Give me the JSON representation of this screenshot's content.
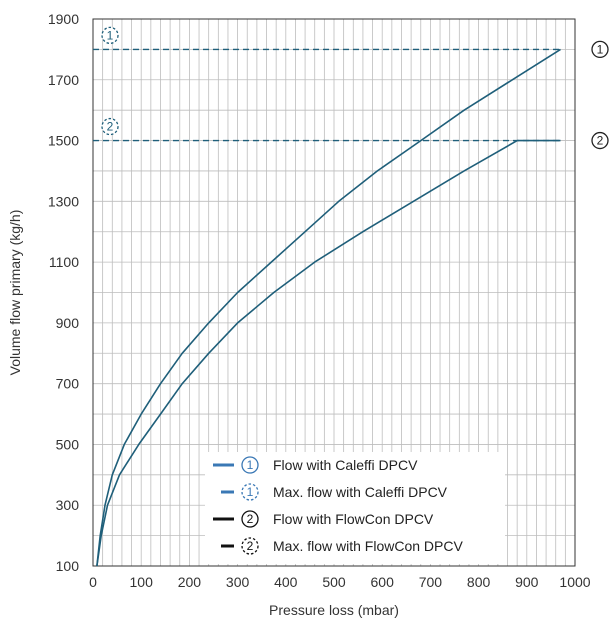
{
  "chart_data": {
    "type": "line",
    "title": "",
    "xlabel": "Pressure loss (mbar)",
    "ylabel": "Volume flow primary (kg/h)",
    "xlim": [
      0,
      1000
    ],
    "ylim": [
      100,
      1900
    ],
    "x_ticks": [
      0,
      100,
      200,
      300,
      400,
      500,
      600,
      700,
      800,
      900,
      1000
    ],
    "y_ticks": [
      100,
      300,
      500,
      700,
      900,
      1100,
      1300,
      1500,
      1700,
      1900
    ],
    "grid": true,
    "legend_position": "bottom-center",
    "series": [
      {
        "name": "Flow with Caleffi DPCV",
        "marker": "1",
        "style": "solid",
        "color": "#1f5f7a",
        "points": [
          [
            8,
            100
          ],
          [
            15,
            200
          ],
          [
            25,
            300
          ],
          [
            40,
            400
          ],
          [
            65,
            500
          ],
          [
            100,
            600
          ],
          [
            140,
            700
          ],
          [
            185,
            800
          ],
          [
            240,
            900
          ],
          [
            300,
            1000
          ],
          [
            370,
            1100
          ],
          [
            440,
            1200
          ],
          [
            510,
            1300
          ],
          [
            590,
            1400
          ],
          [
            680,
            1500
          ],
          [
            770,
            1600
          ],
          [
            870,
            1700
          ],
          [
            970,
            1800
          ]
        ]
      },
      {
        "name": "Max. flow with Caleffi DPCV",
        "marker": "1",
        "style": "dashed",
        "color": "#1f5f7a",
        "value": 1800
      },
      {
        "name": "Flow with FlowCon DPCV",
        "marker": "2",
        "style": "solid",
        "color": "#1f5f7a",
        "points": [
          [
            8,
            100
          ],
          [
            17,
            200
          ],
          [
            30,
            300
          ],
          [
            55,
            400
          ],
          [
            95,
            500
          ],
          [
            140,
            600
          ],
          [
            185,
            700
          ],
          [
            240,
            800
          ],
          [
            300,
            900
          ],
          [
            375,
            1000
          ],
          [
            460,
            1100
          ],
          [
            560,
            1200
          ],
          [
            665,
            1300
          ],
          [
            770,
            1400
          ],
          [
            880,
            1500
          ],
          [
            970,
            1500
          ]
        ]
      },
      {
        "name": "Max. flow with FlowCon DPCV",
        "marker": "2",
        "style": "dashed",
        "color": "#1f5f7a",
        "value": 1500
      }
    ],
    "legend": [
      {
        "marker": "1",
        "style": "solid",
        "color": "#3a78b5",
        "label": "Flow with Caleffi DPCV"
      },
      {
        "marker": "1",
        "style": "dashed",
        "color": "#3a78b5",
        "label": "Max. flow with Caleffi DPCV"
      },
      {
        "marker": "2",
        "style": "solid",
        "color": "#111111",
        "label": "Flow with FlowCon DPCV"
      },
      {
        "marker": "2",
        "style": "dashed",
        "color": "#111111",
        "label": "Max. flow with FlowCon DPCV"
      }
    ]
  }
}
